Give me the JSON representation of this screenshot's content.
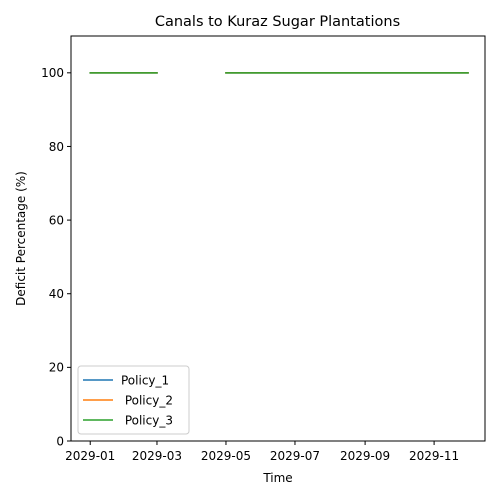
{
  "chart_data": {
    "type": "line",
    "title": "Canals to Kuraz Sugar Plantations",
    "xlabel": "Time",
    "ylabel": "Deficit Percentage (%)",
    "ylim": [
      0,
      110
    ],
    "xlim": [
      "2028-12-15",
      "2029-12-16"
    ],
    "x_ticks": [
      "2029-01",
      "2029-03",
      "2029-05",
      "2029-07",
      "2029-09",
      "2029-11"
    ],
    "y_ticks": [
      0,
      20,
      40,
      60,
      80,
      100
    ],
    "x": [
      "2029-01-01",
      "2029-02-01",
      "2029-03-01",
      "2029-04-01",
      "2029-05-01",
      "2029-06-01",
      "2029-07-01",
      "2029-08-01",
      "2029-09-01",
      "2029-10-01",
      "2029-11-01",
      "2029-12-01"
    ],
    "series": [
      {
        "name": "Policy_1",
        "color": "#1f77b4",
        "values": [
          100,
          100,
          100,
          null,
          100,
          100,
          100,
          100,
          100,
          100,
          100,
          100
        ]
      },
      {
        "name": " Policy_2",
        "color": "#ff7f0e",
        "values": [
          100,
          100,
          100,
          null,
          100,
          100,
          100,
          100,
          100,
          100,
          100,
          100
        ]
      },
      {
        "name": " Policy_3",
        "color": "#2ca02c",
        "values": [
          100,
          100,
          100,
          null,
          100,
          100,
          100,
          100,
          100,
          100,
          100,
          100
        ]
      }
    ],
    "legend_position": "lower-left",
    "grid": false
  }
}
